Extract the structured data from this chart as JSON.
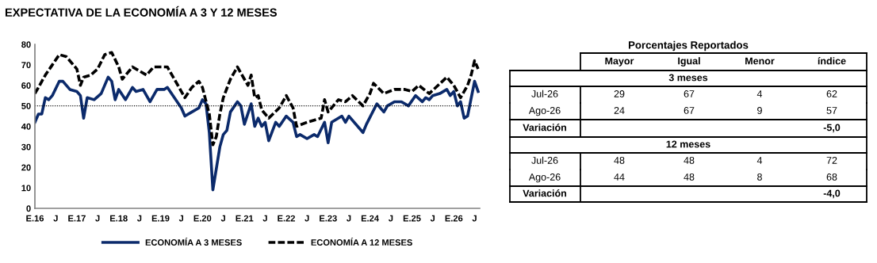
{
  "chart_data": [
    {
      "type": "line",
      "title": "EXPECTATIVA DE LA ECONOMÍA A 3 Y 12 MESES",
      "series": [
        {
          "name": "ECONOMÍA A 3 MESES",
          "color": "#0b2a6b",
          "line_style": "solid",
          "x": [
            "2016-01",
            "2016-02",
            "2016-03",
            "2016-04",
            "2016-05",
            "2016-06",
            "2016-08",
            "2016-09",
            "2016-11",
            "2017-01",
            "2017-02",
            "2017-03",
            "2017-04",
            "2017-06",
            "2017-08",
            "2017-10",
            "2017-11",
            "2017-12",
            "2018-01",
            "2018-03",
            "2018-05",
            "2018-06",
            "2018-08",
            "2018-10",
            "2018-12",
            "2019-02",
            "2019-03",
            "2019-05",
            "2019-07",
            "2019-08",
            "2019-10",
            "2019-12",
            "2020-01",
            "2020-02",
            "2020-03",
            "2020-04",
            "2020-06",
            "2020-07",
            "2020-08",
            "2020-09",
            "2020-11",
            "2020-12",
            "2021-01",
            "2021-03",
            "2021-04",
            "2021-05",
            "2021-06",
            "2021-07",
            "2021-08",
            "2021-10",
            "2021-11",
            "2022-01",
            "2022-03",
            "2022-04",
            "2022-05",
            "2022-07",
            "2022-09",
            "2022-10",
            "2022-12",
            "2023-01",
            "2023-02",
            "2023-05",
            "2023-06",
            "2023-07",
            "2023-11",
            "2023-12",
            "2024-03",
            "2024-05",
            "2024-06",
            "2024-08",
            "2024-10",
            "2024-12",
            "2025-02",
            "2025-04",
            "2025-05",
            "2025-06",
            "2025-07",
            "2025-09",
            "2025-11",
            "2025-12",
            "2026-01",
            "2026-02",
            "2026-03",
            "2026-04",
            "2026-05",
            "2026-07",
            "2026-08"
          ],
          "values": [
            42,
            46,
            46,
            54,
            53,
            55,
            62,
            62,
            58,
            57,
            55,
            44,
            54,
            53,
            56,
            64,
            62,
            53,
            58,
            53,
            59,
            57,
            58,
            52,
            58,
            58,
            59,
            54,
            49,
            45,
            47,
            49,
            53,
            51,
            37,
            9,
            30,
            36,
            38,
            47,
            52,
            50,
            41,
            51,
            40,
            44,
            40,
            42,
            33,
            42,
            40,
            45,
            42,
            35,
            36,
            34,
            36,
            35,
            42,
            32,
            42,
            45,
            42,
            45,
            37,
            41,
            51,
            47,
            50,
            52,
            52,
            50,
            55,
            52,
            54,
            53,
            55,
            56,
            58,
            55,
            57,
            50,
            52,
            44,
            45,
            62,
            57
          ]
        },
        {
          "name": "ECONOMÍA A 12 MESES",
          "color": "#000000",
          "line_style": "dashed",
          "x": [
            "2016-01",
            "2016-02",
            "2016-04",
            "2016-06",
            "2016-08",
            "2016-10",
            "2017-01",
            "2017-02",
            "2017-03",
            "2017-05",
            "2017-07",
            "2017-09",
            "2017-11",
            "2018-01",
            "2018-02",
            "2018-05",
            "2018-07",
            "2018-09",
            "2018-11",
            "2019-03",
            "2019-06",
            "2019-08",
            "2019-10",
            "2019-12",
            "2020-01",
            "2020-03",
            "2020-04",
            "2020-05",
            "2020-06",
            "2020-07",
            "2020-09",
            "2020-11",
            "2020-12",
            "2021-02",
            "2021-03",
            "2021-04",
            "2021-05",
            "2021-06",
            "2021-08",
            "2021-11",
            "2022-01",
            "2022-03",
            "2022-04",
            "2022-07",
            "2022-11",
            "2022-12",
            "2023-01",
            "2023-04",
            "2023-06",
            "2023-08",
            "2023-11",
            "2024-01",
            "2024-02",
            "2024-05",
            "2024-08",
            "2024-11",
            "2025-01",
            "2025-03",
            "2025-06",
            "2025-11",
            "2026-01",
            "2026-03",
            "2026-05",
            "2026-06",
            "2026-07",
            "2026-08"
          ],
          "values": [
            56,
            59,
            65,
            70,
            75,
            74,
            68,
            60,
            64,
            65,
            68,
            75,
            76,
            69,
            63,
            69,
            67,
            65,
            69,
            69,
            60,
            54,
            59,
            62,
            59,
            46,
            31,
            35,
            46,
            54,
            63,
            69,
            66,
            60,
            65,
            54,
            55,
            48,
            44,
            49,
            55,
            49,
            40,
            42,
            44,
            53,
            47,
            53,
            52,
            55,
            50,
            56,
            61,
            56,
            58,
            58,
            57,
            60,
            56,
            64,
            60,
            54,
            60,
            65,
            72,
            68
          ]
        }
      ],
      "xlim": [
        "2016-01",
        "2026-08-15"
      ],
      "xticks": [
        {
          "value": "2016-01",
          "label": "E.16"
        },
        {
          "value": "2016-07",
          "label": "J"
        },
        {
          "value": "2017-01",
          "label": "E.17"
        },
        {
          "value": "2017-07",
          "label": "J"
        },
        {
          "value": "2018-01",
          "label": "E.18"
        },
        {
          "value": "2018-07",
          "label": "J"
        },
        {
          "value": "2019-01",
          "label": "E.19"
        },
        {
          "value": "2019-07",
          "label": "J"
        },
        {
          "value": "2020-01",
          "label": "E.20"
        },
        {
          "value": "2020-07",
          "label": "J"
        },
        {
          "value": "2021-01",
          "label": "E.21"
        },
        {
          "value": "2021-07",
          "label": "J"
        },
        {
          "value": "2022-01",
          "label": "E.22"
        },
        {
          "value": "2022-07",
          "label": "J"
        },
        {
          "value": "2023-01",
          "label": "E.23"
        },
        {
          "value": "2023-07",
          "label": "J"
        },
        {
          "value": "2024-01",
          "label": "E.24"
        },
        {
          "value": "2024-07",
          "label": "J"
        },
        {
          "value": "2025-01",
          "label": "E.25"
        },
        {
          "value": "2025-07",
          "label": "J"
        },
        {
          "value": "2026-01",
          "label": "E.26"
        },
        {
          "value": "2026-07",
          "label": "J"
        }
      ],
      "ylim": [
        0,
        80
      ],
      "yticks": [
        0,
        10,
        20,
        30,
        40,
        50,
        60,
        70,
        80
      ],
      "ref_lines": [
        {
          "axis": "y",
          "value": 50,
          "color": "#000000",
          "line_style": "dotted"
        }
      ],
      "grid": false,
      "legend": "bottom"
    },
    {
      "type": "other",
      "title": "Porcentajes Reportados",
      "annotations": [
        "Mayor",
        "Igual",
        "Menor",
        "índice",
        "3 meses",
        "Jul-26",
        "29",
        "67",
        "4",
        "62",
        "Ago-26",
        "24",
        "67",
        "9",
        "57",
        "Variación",
        "-5,0",
        "12 meses",
        "Jul-26",
        "48",
        "48",
        "4",
        "72",
        "Ago-26",
        "44",
        "48",
        "8",
        "68",
        "Variación",
        "-4,0"
      ]
    }
  ]
}
